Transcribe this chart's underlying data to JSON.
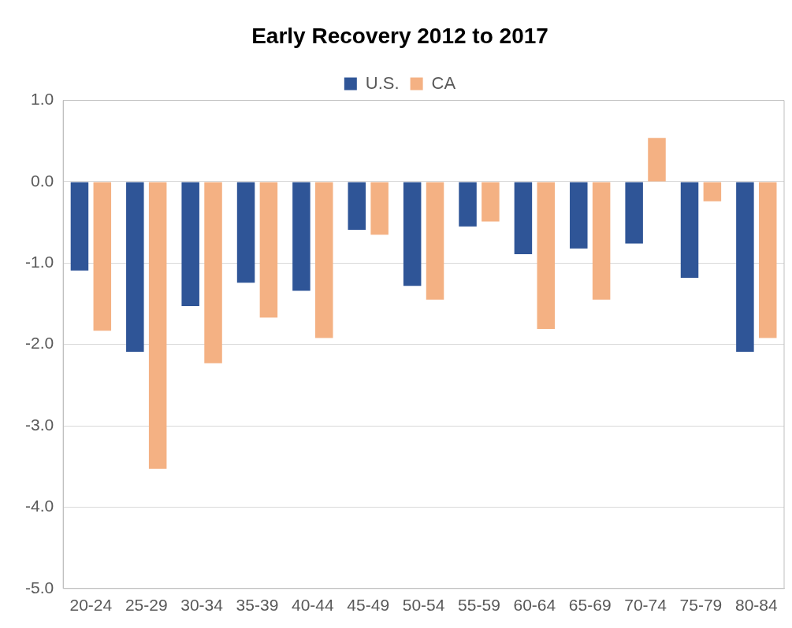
{
  "chart_data": {
    "type": "bar",
    "title": "Early Recovery 2012 to 2017",
    "categories": [
      "20-24",
      "25-29",
      "30-34",
      "35-39",
      "40-44",
      "45-49",
      "50-54",
      "55-59",
      "60-64",
      "65-69",
      "70-74",
      "75-79",
      "80-84"
    ],
    "series": [
      {
        "name": "U.S.",
        "color": "#2f5597",
        "values": [
          -1.09,
          -2.09,
          -1.53,
          -1.24,
          -1.34,
          -0.59,
          -1.28,
          -0.55,
          -0.89,
          -0.82,
          -0.76,
          -1.18,
          -2.09
        ]
      },
      {
        "name": "CA",
        "color": "#f4b183",
        "values": [
          -1.83,
          -3.53,
          -2.23,
          -1.67,
          -1.92,
          -0.65,
          -1.45,
          -0.49,
          -1.81,
          -1.45,
          0.54,
          -0.24,
          -1.92
        ]
      }
    ],
    "ylim": [
      -5,
      1
    ],
    "yticks": [
      {
        "value": -5,
        "label": "-5.0"
      },
      {
        "value": -4,
        "label": "-4.0"
      },
      {
        "value": -3,
        "label": "-3.0"
      },
      {
        "value": -2,
        "label": "-2.0"
      },
      {
        "value": -1,
        "label": "-1.0"
      },
      {
        "value": 0,
        "label": "0.0"
      },
      {
        "value": 1,
        "label": "1.0"
      }
    ],
    "grid": "y",
    "legend": "top"
  }
}
